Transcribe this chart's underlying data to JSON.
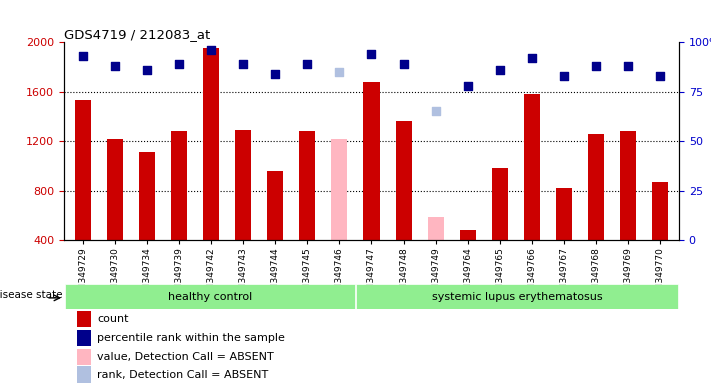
{
  "title": "GDS4719 / 212083_at",
  "samples": [
    "GSM349729",
    "GSM349730",
    "GSM349734",
    "GSM349739",
    "GSM349742",
    "GSM349743",
    "GSM349744",
    "GSM349745",
    "GSM349746",
    "GSM349747",
    "GSM349748",
    "GSM349749",
    "GSM349764",
    "GSM349765",
    "GSM349766",
    "GSM349767",
    "GSM349768",
    "GSM349769",
    "GSM349770"
  ],
  "bar_values": [
    1530,
    1220,
    1110,
    1280,
    1950,
    1290,
    960,
    1280,
    1220,
    1680,
    1360,
    590,
    480,
    980,
    1580,
    820,
    1260,
    1280,
    870
  ],
  "bar_absent": [
    false,
    false,
    false,
    false,
    false,
    false,
    false,
    false,
    true,
    false,
    false,
    true,
    false,
    false,
    false,
    false,
    false,
    false,
    false
  ],
  "percentile_values": [
    93,
    88,
    86,
    89,
    96,
    89,
    84,
    89,
    85,
    94,
    89,
    65,
    78,
    86,
    92,
    83,
    88,
    88,
    83
  ],
  "percentile_absent": [
    false,
    false,
    false,
    false,
    false,
    false,
    false,
    false,
    true,
    false,
    false,
    true,
    false,
    false,
    false,
    false,
    false,
    false,
    false
  ],
  "group_labels": [
    "healthy control",
    "systemic lupus erythematosus"
  ],
  "group_split": 9,
  "bar_color_present": "#cc0000",
  "bar_color_absent": "#ffb6c1",
  "dot_color_present": "#00008b",
  "dot_color_absent": "#b0c0e0",
  "ylim_left": [
    400,
    2000
  ],
  "ylim_right": [
    0,
    100
  ],
  "yticks_left": [
    400,
    800,
    1200,
    1600,
    2000
  ],
  "yticks_right": [
    0,
    25,
    50,
    75,
    100
  ],
  "ytick_labels_right": [
    "0",
    "25",
    "50",
    "75",
    "100%"
  ],
  "grid_values": [
    800,
    1200,
    1600
  ],
  "legend_items": [
    {
      "label": "count",
      "color": "#cc0000"
    },
    {
      "label": "percentile rank within the sample",
      "color": "#00008b"
    },
    {
      "label": "value, Detection Call = ABSENT",
      "color": "#ffb6c1"
    },
    {
      "label": "rank, Detection Call = ABSENT",
      "color": "#b0c0e0"
    }
  ]
}
